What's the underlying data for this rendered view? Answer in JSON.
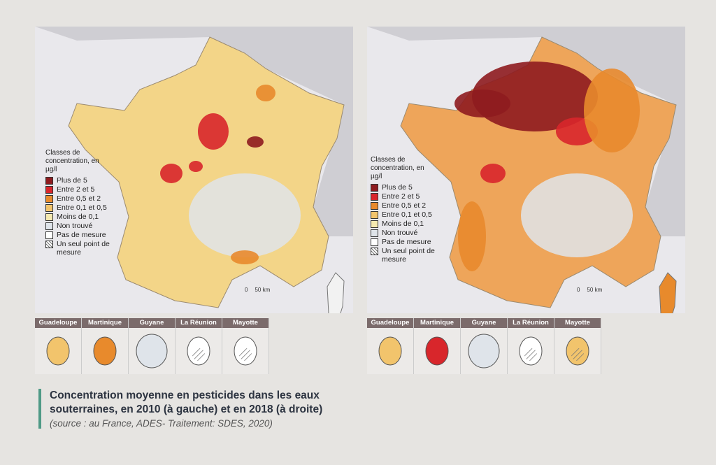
{
  "maps": [
    {
      "legend": {
        "title": "Classes de concentration, en µg/l",
        "items": [
          {
            "label": "Plus de 5",
            "color": "#8e1b1f"
          },
          {
            "label": "Entre 2 et 5",
            "color": "#d8262b"
          },
          {
            "label": "Entre 0,5 et 2",
            "color": "#e88a2c"
          },
          {
            "label": "Entre 0,1 et 0,5",
            "color": "#f2c46c"
          },
          {
            "label": "Moins de 0,1",
            "color": "#f5e9b0"
          },
          {
            "label": "Non trouvé",
            "color": "#dfe4ea"
          },
          {
            "label": "Pas de mesure",
            "color": "#ffffff"
          },
          {
            "label": "Un seul point de mesure",
            "color": "#ffffff",
            "pattern": "hatch"
          }
        ]
      },
      "scale": {
        "zero": "0",
        "distance": "50 km"
      },
      "overseas": [
        "Guadeloupe",
        "Martinique",
        "Guyane",
        "La Réunion",
        "Mayotte"
      ]
    },
    {
      "legend": {
        "title": "Classes de concentration, en µg/l",
        "items": [
          {
            "label": "Plus de 5",
            "color": "#8e1b1f"
          },
          {
            "label": "Entre 2 et 5",
            "color": "#d8262b"
          },
          {
            "label": "Entre 0,5 et 2",
            "color": "#e88a2c"
          },
          {
            "label": "Entre 0,1 et 0,5",
            "color": "#f2c46c"
          },
          {
            "label": "Moins de 0,1",
            "color": "#f5e9b0"
          },
          {
            "label": "Non trouvé",
            "color": "#dfe4ea"
          },
          {
            "label": "Pas de mesure",
            "color": "#ffffff"
          },
          {
            "label": "Un seul point de mesure",
            "color": "#ffffff",
            "pattern": "hatch"
          }
        ]
      },
      "scale": {
        "zero": "0",
        "distance": "50 km"
      },
      "overseas": [
        "Guadeloupe",
        "Martinique",
        "Guyane",
        "La Réunion",
        "Mayotte"
      ]
    }
  ],
  "caption": {
    "title": "Concentration moyenne en pesticides dans les eaux souterraines, en 2010 (à gauche) et en 2018 (à droite)",
    "source": "(source : au France, ADES- Traitement: SDES, 2020)"
  }
}
